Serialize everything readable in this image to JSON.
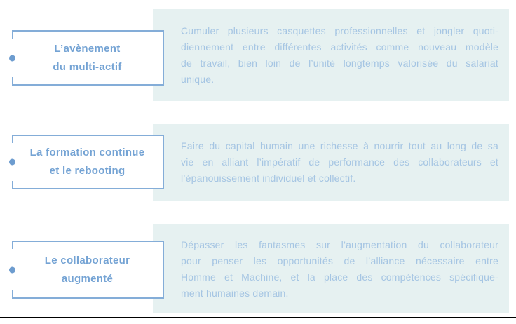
{
  "theme": {
    "panel_bg": "#e6f1f1",
    "title_color": "#74a3d4",
    "body_color": "#a5c5e3",
    "border_color": "#84add8",
    "dot_color": "#6d9ccf",
    "line_color": "#000000",
    "page_bg": "#ffffff"
  },
  "rows": [
    {
      "title_lines": [
        "L’avènement",
        "du multi-actif"
      ],
      "body_lines": [
        "Cumuler plusieurs casquettes professionnelles et jongler quoti-",
        "diennement entre différentes activités comme nouveau modèle",
        "de travail, bien loin de l’unité longtemps valorisée du salariat",
        "unique."
      ]
    },
    {
      "title_lines": [
        "La formation continue",
        "et le rebooting"
      ],
      "body_lines": [
        "Faire du capital humain une richesse à nourrir tout au long de sa",
        "vie en alliant l’impératif de performance des collaborateurs et",
        "l’épanouissement individuel et collectif."
      ]
    },
    {
      "title_lines": [
        "Le collaborateur",
        "augmenté"
      ],
      "body_lines": [
        "Dépasser les fantasmes sur l’augmentation du collaborateur",
        "pour penser les opportunités de l’alliance nécessaire entre",
        "Homme et Machine, et la place des compétences spécifique-",
        "ment humaines demain."
      ]
    }
  ]
}
